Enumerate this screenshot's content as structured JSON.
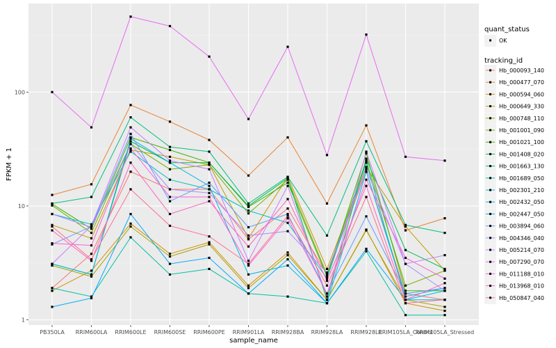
{
  "chart_data": {
    "type": "line",
    "title": "",
    "xlabel": "sample_name",
    "ylabel": "FPKM + 1",
    "y_scale": "log10",
    "ylim": [
      0.9,
      600
    ],
    "y_ticks": [
      1,
      10,
      100
    ],
    "y_tick_labels": [
      "1",
      "10",
      "100"
    ],
    "grid": true,
    "background": "#ebebeb",
    "categories": [
      "PB350LA",
      "RRIM600LA",
      "RRIM600LE",
      "RRIM600SE",
      "RRIM600PE",
      "RRIM901LA",
      "RRIM928BA",
      "RRIM928LA",
      "RRIM928LE",
      "RRIM105LA_Control",
      "RRIM105LA_Stressed"
    ],
    "legend_position": "right",
    "shape_legend": {
      "title": "quant_status",
      "entries": [
        "OK"
      ]
    },
    "color_legend_title": "tracking_id",
    "series": [
      {
        "name": "Hb_000093_140",
        "color": "#F8766D",
        "values": [
          1.9,
          3.8,
          20,
          14,
          14,
          5.1,
          9.5,
          2.5,
          20,
          1.7,
          1.5
        ]
      },
      {
        "name": "Hb_000477_070",
        "color": "#EA8331",
        "values": [
          12.5,
          15.5,
          77,
          55,
          38,
          18.5,
          40,
          10.5,
          51,
          6.1,
          7.8
        ]
      },
      {
        "name": "Hb_000594_060",
        "color": "#D89000",
        "values": [
          1.8,
          2.7,
          7.0,
          3.8,
          4.8,
          2.0,
          3.9,
          1.5,
          6.2,
          1.4,
          1.2
        ]
      },
      {
        "name": "Hb_000649_330",
        "color": "#C09B00",
        "values": [
          6.8,
          5.2,
          31,
          27,
          23,
          5.2,
          18,
          2.8,
          22,
          6.6,
          2.7
        ]
      },
      {
        "name": "Hb_000748_110",
        "color": "#A3A500",
        "values": [
          3.0,
          2.4,
          6.6,
          3.6,
          4.6,
          1.9,
          3.7,
          1.5,
          6.1,
          1.5,
          1.3
        ]
      },
      {
        "name": "Hb_001001_090",
        "color": "#7CAE00",
        "values": [
          10.1,
          5.8,
          35,
          21,
          23,
          8.6,
          17,
          2.5,
          25,
          2.0,
          2.7
        ]
      },
      {
        "name": "Hb_001021_100",
        "color": "#39B600",
        "values": [
          10.4,
          6.3,
          40,
          31,
          24,
          9.8,
          16,
          2.4,
          29,
          1.8,
          1.8
        ]
      },
      {
        "name": "Hb_001408_020",
        "color": "#00BB4E",
        "values": [
          3.1,
          2.5,
          37,
          24,
          24,
          10,
          17.5,
          1.5,
          26,
          4.1,
          2.8
        ]
      },
      {
        "name": "Hb_001663_130",
        "color": "#00BF7D",
        "values": [
          10.5,
          12,
          60,
          33,
          30,
          10.5,
          18,
          5.5,
          37,
          6.8,
          5.8
        ]
      },
      {
        "name": "Hb_001689_050",
        "color": "#00C1A3",
        "values": [
          1.9,
          1.6,
          5.3,
          2.5,
          2.8,
          1.7,
          1.6,
          1.4,
          4.0,
          1.1,
          1.1
        ]
      },
      {
        "name": "Hb_002301_210",
        "color": "#00BFC4",
        "values": [
          8.5,
          6.9,
          30,
          17,
          14,
          9.1,
          7.1,
          2.3,
          24,
          1.5,
          1.5
        ]
      },
      {
        "name": "Hb_002432_050",
        "color": "#00B8E5",
        "values": [
          3.1,
          2.5,
          39,
          24,
          15,
          2.5,
          3.0,
          1.4,
          20,
          1.6,
          1.9
        ]
      },
      {
        "name": "Hb_002447_050",
        "color": "#00ABFD",
        "values": [
          1.3,
          1.55,
          8.5,
          3.1,
          3.5,
          1.7,
          3.4,
          1.4,
          4.2,
          1.5,
          1.8
        ]
      },
      {
        "name": "Hb_003894_060",
        "color": "#619CFF",
        "values": [
          4.6,
          6.6,
          43,
          11,
          16,
          6.5,
          8.5,
          1.7,
          8.1,
          1.7,
          1.9
        ]
      },
      {
        "name": "Hb_004346_040",
        "color": "#A58AFF",
        "values": [
          8.5,
          6.5,
          35,
          14,
          13,
          5.5,
          6.0,
          2.6,
          21,
          3.1,
          1.8
        ]
      },
      {
        "name": "Hb_005214_070",
        "color": "#C77CFF",
        "values": [
          3.1,
          6.7,
          49,
          25,
          21,
          3.3,
          15,
          1.6,
          30,
          3.1,
          3.7
        ]
      },
      {
        "name": "Hb_007290_070",
        "color": "#E76BF3",
        "values": [
          100,
          49,
          460,
          380,
          205,
          58,
          250,
          28,
          320,
          27,
          25
        ]
      },
      {
        "name": "Hb_011188_010",
        "color": "#FA62DB",
        "values": [
          4.7,
          4.5,
          32,
          12,
          12,
          3.0,
          7.8,
          1.7,
          17,
          3.5,
          2.3
        ]
      },
      {
        "name": "Hb_013968_010",
        "color": "#FF62BC",
        "values": [
          6.1,
          3.3,
          24,
          8.5,
          11,
          4.4,
          11.5,
          2.2,
          15,
          1.5,
          2.1
        ]
      },
      {
        "name": "Hb_050847_040",
        "color": "#FF6C91",
        "values": [
          6.6,
          3.4,
          14,
          6.7,
          5.4,
          3.1,
          8.2,
          2.0,
          12,
          1.4,
          1.5
        ]
      }
    ]
  }
}
